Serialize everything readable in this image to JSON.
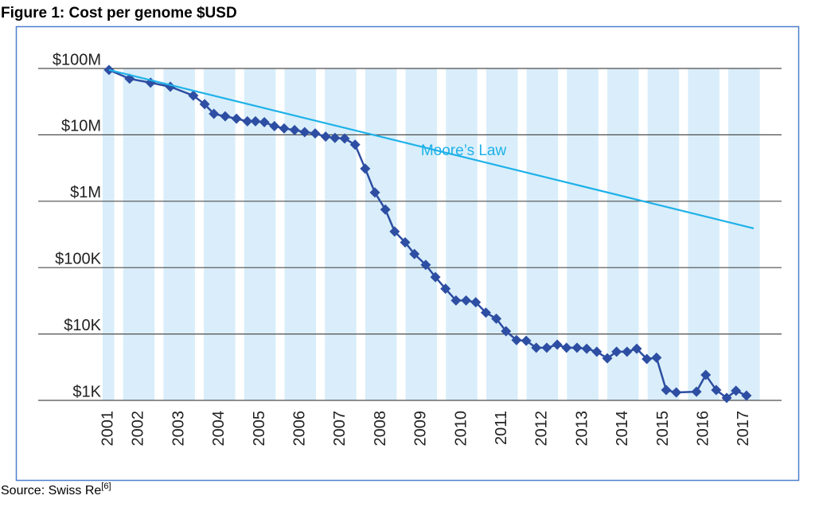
{
  "chart_data": {
    "type": "line",
    "title": "Figure 1: Cost per genome $USD",
    "source": "Source: Swiss Re",
    "source_note": "[6]",
    "ylog": true,
    "grid": true,
    "band_color": "#d9eefa",
    "xlim": [
      2000,
      2018.3
    ],
    "xticks": [
      2001,
      2002,
      2003,
      2004,
      2005,
      2006,
      2007,
      2008,
      2009,
      2010,
      2011,
      2012,
      2013,
      2014,
      2015,
      2016,
      2017
    ],
    "ylim": [
      1000,
      100000000
    ],
    "yticks": [
      {
        "value": 1000,
        "label": "$1K"
      },
      {
        "value": 10000,
        "label": "$10K"
      },
      {
        "value": 100000,
        "label": "$100K"
      },
      {
        "value": 1000000,
        "label": "$1M"
      },
      {
        "value": 10000000,
        "label": "$10M"
      },
      {
        "value": 100000000,
        "label": "$100M"
      }
    ],
    "series": [
      {
        "color": "#2d4ea2",
        "marker": "diamond",
        "x": [
          2001.65,
          2002.16,
          2002.68,
          2003.17,
          2003.74,
          2004.02,
          2004.25,
          2004.53,
          2004.81,
          2005.08,
          2005.28,
          2005.5,
          2005.75,
          2005.99,
          2006.25,
          2006.5,
          2006.76,
          2007.02,
          2007.25,
          2007.49,
          2007.75,
          2008.0,
          2008.24,
          2008.5,
          2008.73,
          2008.99,
          2009.22,
          2009.5,
          2009.74,
          2009.99,
          2010.25,
          2010.5,
          2010.74,
          2010.99,
          2011.25,
          2011.49,
          2011.75,
          2011.99,
          2012.24,
          2012.5,
          2012.76,
          2012.99,
          2013.25,
          2013.49,
          2013.74,
          2014.0,
          2014.23,
          2014.49,
          2014.73,
          2014.98,
          2015.22,
          2015.46,
          2015.71,
          2016.21,
          2016.44,
          2016.7,
          2016.96,
          2017.19,
          2017.45
        ],
        "values": [
          95000000,
          70000000,
          61000000,
          53000000,
          39000000,
          29000000,
          20700000,
          19000000,
          17500000,
          16000000,
          16000000,
          15500000,
          13500000,
          12500000,
          11800000,
          11000000,
          10500000,
          9400000,
          9000000,
          8800000,
          7100000,
          3100000,
          1350000,
          750000,
          350000,
          240000,
          160000,
          110000,
          72000,
          48000,
          32000,
          32000,
          30000,
          21000,
          17000,
          11000,
          8100,
          7900,
          6200,
          6200,
          6900,
          6200,
          6200,
          6000,
          5400,
          4300,
          5400,
          5400,
          6000,
          4200,
          4400,
          1430,
          1320,
          1350,
          2420,
          1430,
          1090,
          1400,
          1180
        ]
      },
      {
        "name": "Moore’s Law",
        "color": "#1fb1e9",
        "x": [
          2001.65,
          2017.63
        ],
        "values": [
          95000000,
          390000
        ]
      }
    ]
  }
}
